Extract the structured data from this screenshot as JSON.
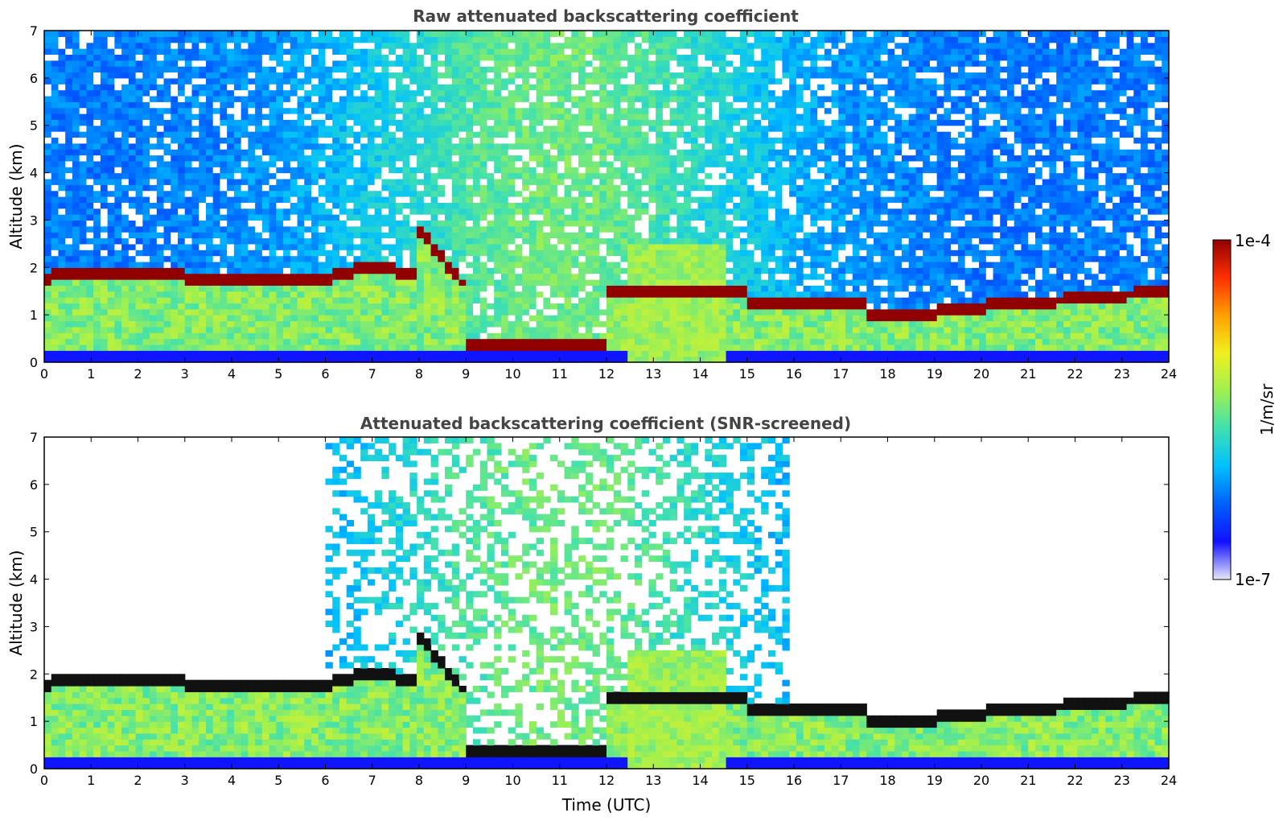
{
  "chart_data": [
    {
      "type": "heatmap",
      "title": "Raw attenuated backscattering coefficient",
      "xlabel": "",
      "ylabel": "Altitude (km)",
      "xlim": [
        0,
        24
      ],
      "ylim": [
        0,
        7
      ],
      "xticks": [
        "0",
        "1",
        "2",
        "3",
        "4",
        "5",
        "6",
        "7",
        "8",
        "9",
        "10",
        "11",
        "12",
        "13",
        "14",
        "15",
        "16",
        "17",
        "18",
        "19",
        "20",
        "21",
        "22",
        "23",
        "24"
      ],
      "yticks": [
        "0",
        "1",
        "2",
        "3",
        "4",
        "5",
        "6",
        "7"
      ],
      "screened": false
    },
    {
      "type": "heatmap",
      "title": "Attenuated backscattering coefficient (SNR-screened)",
      "xlabel": "Time (UTC)",
      "ylabel": "Altitude (km)",
      "xlim": [
        0,
        24
      ],
      "ylim": [
        0,
        7
      ],
      "xticks": [
        "0",
        "1",
        "2",
        "3",
        "4",
        "5",
        "6",
        "7",
        "8",
        "9",
        "10",
        "11",
        "12",
        "13",
        "14",
        "15",
        "16",
        "17",
        "18",
        "19",
        "20",
        "21",
        "22",
        "23",
        "24"
      ],
      "yticks": [
        "0",
        "1",
        "2",
        "3",
        "4",
        "5",
        "6",
        "7"
      ],
      "screened": true
    }
  ],
  "colorbar": {
    "label": "1/m/sr",
    "max_label": "1e-4",
    "min_label": "1e-7",
    "scale": "log",
    "colormap": [
      "#e8e8f8",
      "#1010ff",
      "#0060ff",
      "#00c0ff",
      "#40e0b0",
      "#a0f050",
      "#f0f020",
      "#ffa000",
      "#ff3000",
      "#900000"
    ]
  }
}
